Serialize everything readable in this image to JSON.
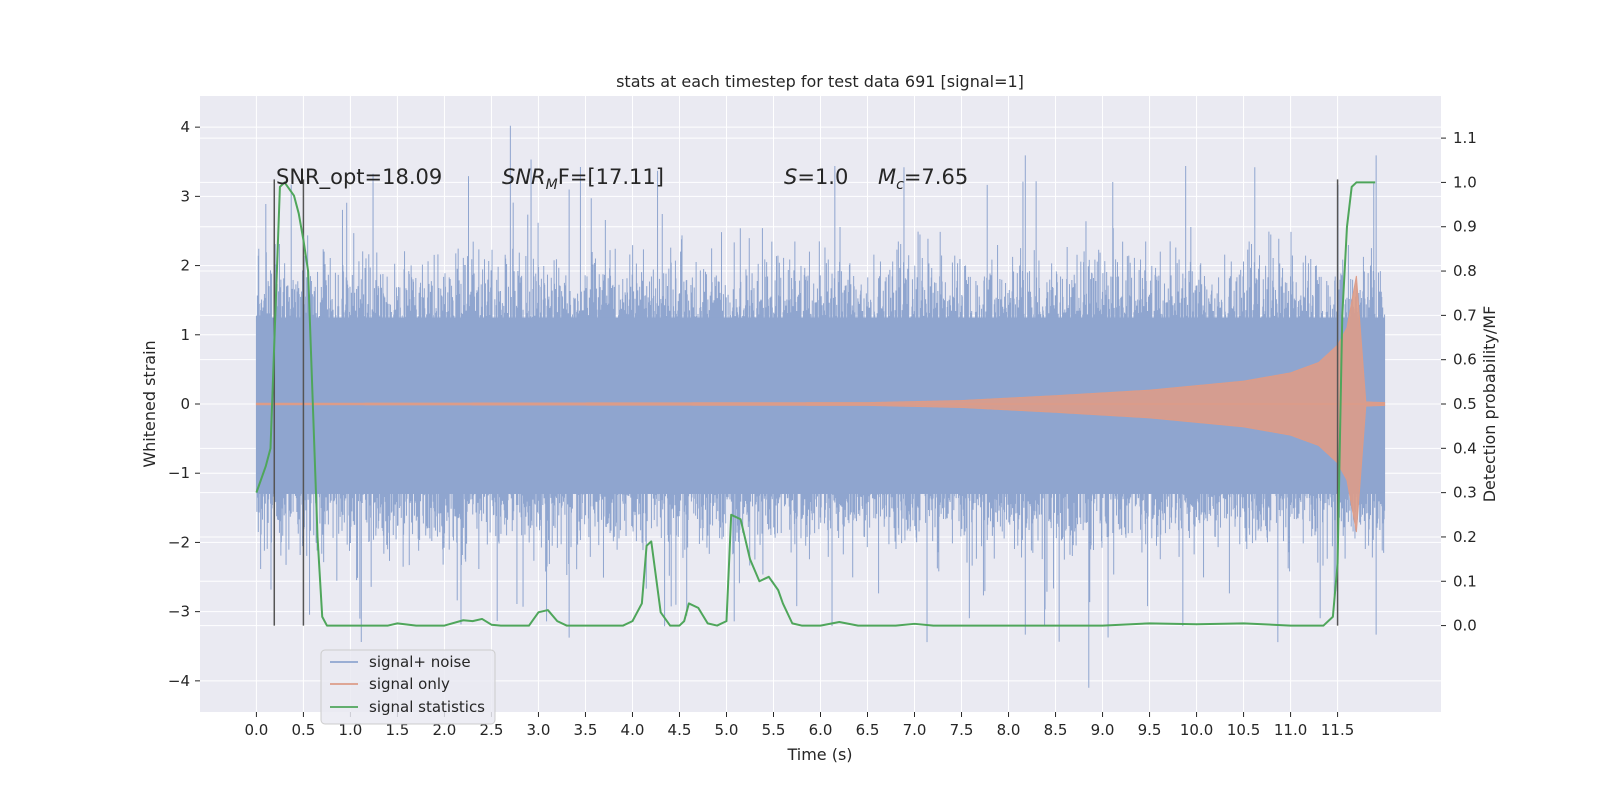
{
  "chart_data": {
    "type": "line",
    "title": "stats at each timestep for test data 691 [signal=1]",
    "xlabel": "Time (s)",
    "ylabel_left": "Whitened strain",
    "ylabel_right": "Detection probability/MF",
    "xlim": [
      -0.6,
      12.6
    ],
    "ylim_left": [
      -4.45,
      4.45
    ],
    "ylim_right": [
      -0.195,
      1.195
    ],
    "x_ticks": [
      "0.0",
      "0.5",
      "1.0",
      "1.5",
      "2.0",
      "2.5",
      "3.0",
      "3.5",
      "4.0",
      "4.5",
      "5.0",
      "5.5",
      "6.0",
      "6.5",
      "7.0",
      "7.5",
      "8.0",
      "8.5",
      "9.0",
      "9.5",
      "10.0",
      "10.5",
      "11.0",
      "11.5"
    ],
    "y_ticks_left": [
      "4",
      "3",
      "2",
      "1",
      "0",
      "−1",
      "−2",
      "−3",
      "−4"
    ],
    "y_ticks_right": [
      "1.1",
      "1.0",
      "0.9",
      "0.8",
      "0.7",
      "0.6",
      "0.5",
      "0.4",
      "0.3",
      "0.2",
      "0.1",
      "0.0"
    ],
    "grid": true,
    "legend_position": "lower-left",
    "annotations": {
      "snr_opt": "SNR_opt=18.09",
      "snr_mf_pre": "SNR",
      "snr_mf_sub": "M",
      "snr_mf_post": "F=[17.11]",
      "s_pre": "S",
      "s_post": "=1.0",
      "mc_pre": "M",
      "mc_sub": "c",
      "mc_post": "=7.65"
    },
    "vertical_lines_s": [
      0.19,
      0.5,
      11.5
    ],
    "series": [
      {
        "name": "signal+ noise",
        "color": "#8fa5cf",
        "x_range": [
          0.0,
          12.0
        ],
        "typical_band": [
          -1.3,
          1.25
        ],
        "peak_max": 4.02,
        "peak_min": -4.1
      },
      {
        "name": "signal only",
        "color": "#dd9c88",
        "x_range": [
          0.0,
          12.0
        ],
        "envelope": {
          "t": [
            0.0,
            6.5,
            7.5,
            8.5,
            9.5,
            10.5,
            11.0,
            11.3,
            11.5,
            11.6,
            11.7,
            11.8,
            12.0
          ],
          "amp": [
            0.01,
            0.02,
            0.05,
            0.12,
            0.2,
            0.33,
            0.45,
            0.6,
            0.85,
            1.1,
            1.85,
            0.03,
            0.02
          ]
        }
      },
      {
        "name": "signal statistics",
        "color": "#4fa65b",
        "x": [
          0.0,
          0.1,
          0.15,
          0.25,
          0.3,
          0.4,
          0.45,
          0.5,
          0.55,
          0.6,
          0.65,
          0.7,
          0.75,
          0.8,
          1.0,
          1.2,
          1.4,
          1.5,
          1.7,
          1.8,
          2.0,
          2.2,
          2.3,
          2.4,
          2.5,
          2.6,
          2.7,
          2.8,
          2.9,
          3.0,
          3.1,
          3.2,
          3.3,
          3.5,
          3.7,
          3.9,
          4.0,
          4.1,
          4.15,
          4.2,
          4.3,
          4.4,
          4.5,
          4.55,
          4.6,
          4.7,
          4.8,
          4.9,
          5.0,
          5.05,
          5.15,
          5.25,
          5.35,
          5.45,
          5.55,
          5.6,
          5.7,
          5.8,
          6.0,
          6.2,
          6.4,
          6.6,
          6.8,
          7.0,
          7.2,
          7.5,
          8.0,
          8.5,
          9.0,
          9.5,
          10.0,
          10.5,
          11.0,
          11.35,
          11.45,
          11.5,
          11.55,
          11.6,
          11.65,
          11.7,
          11.8,
          11.9
        ],
        "y": [
          0.3,
          0.36,
          0.4,
          0.99,
          1.0,
          0.97,
          0.93,
          0.87,
          0.8,
          0.5,
          0.2,
          0.02,
          0.0,
          0.0,
          0.0,
          0.0,
          0.0,
          0.005,
          0.0,
          0.0,
          0.0,
          0.012,
          0.01,
          0.015,
          0.002,
          0.0,
          0.0,
          0.0,
          0.0,
          0.03,
          0.035,
          0.01,
          0.0,
          0.0,
          0.0,
          0.0,
          0.01,
          0.05,
          0.18,
          0.19,
          0.03,
          0.0,
          0.0,
          0.01,
          0.05,
          0.04,
          0.005,
          0.0,
          0.01,
          0.25,
          0.24,
          0.15,
          0.1,
          0.11,
          0.08,
          0.05,
          0.005,
          0.0,
          0.0,
          0.008,
          0.0,
          0.0,
          0.0,
          0.004,
          0.0,
          0.0,
          0.0,
          0.0,
          0.0,
          0.005,
          0.003,
          0.005,
          0.0,
          0.0,
          0.02,
          0.14,
          0.7,
          0.9,
          0.99,
          1.0,
          1.0,
          1.0
        ]
      }
    ]
  }
}
